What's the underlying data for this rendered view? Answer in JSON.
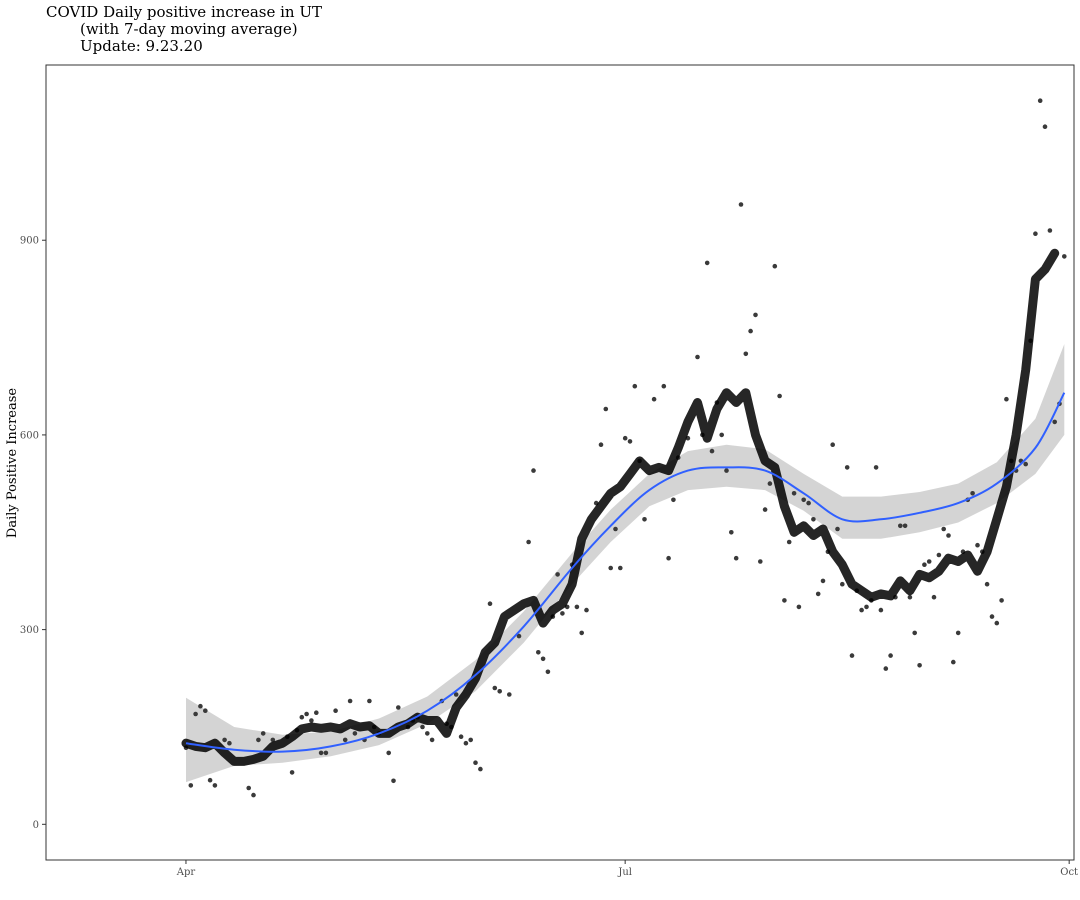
{
  "chart_data": {
    "type": "scatter",
    "title_lines": [
      "COVID Daily positive increase in UT",
      "(with 7-day moving average)",
      "Update:  9.23.20"
    ],
    "xlabel": "",
    "ylabel": "Daily Positive Increase",
    "x_ticks": [
      "Apr",
      "Jul",
      "Oct"
    ],
    "y_ticks": [
      0,
      300,
      600,
      900
    ],
    "ylim": [
      -55,
      1170
    ],
    "xlim_days": [
      -29,
      184
    ],
    "grid": false,
    "colors": {
      "points": "#3a3a3a",
      "moving_average": "#000000",
      "smooth": "#3060ff",
      "band": "#cfcfcf"
    },
    "daily_points": [
      [
        0,
        118
      ],
      [
        1,
        60
      ],
      [
        2,
        170
      ],
      [
        3,
        182
      ],
      [
        4,
        175
      ],
      [
        5,
        68
      ],
      [
        6,
        60
      ],
      [
        8,
        130
      ],
      [
        9,
        125
      ],
      [
        13,
        56
      ],
      [
        14,
        45
      ],
      [
        15,
        130
      ],
      [
        16,
        140
      ],
      [
        18,
        130
      ],
      [
        21,
        135
      ],
      [
        22,
        80
      ],
      [
        23,
        145
      ],
      [
        24,
        165
      ],
      [
        25,
        170
      ],
      [
        26,
        160
      ],
      [
        27,
        172
      ],
      [
        28,
        110
      ],
      [
        29,
        110
      ],
      [
        31,
        175
      ],
      [
        33,
        130
      ],
      [
        34,
        190
      ],
      [
        35,
        140
      ],
      [
        37,
        130
      ],
      [
        38,
        190
      ],
      [
        39,
        150
      ],
      [
        40,
        140
      ],
      [
        42,
        110
      ],
      [
        43,
        67
      ],
      [
        44,
        180
      ],
      [
        46,
        150
      ],
      [
        47,
        160
      ],
      [
        48,
        165
      ],
      [
        49,
        150
      ],
      [
        50,
        140
      ],
      [
        51,
        130
      ],
      [
        53,
        190
      ],
      [
        54,
        155
      ],
      [
        55,
        150
      ],
      [
        56,
        200
      ],
      [
        57,
        135
      ],
      [
        58,
        125
      ],
      [
        59,
        130
      ],
      [
        60,
        95
      ],
      [
        61,
        85
      ],
      [
        63,
        340
      ],
      [
        64,
        210
      ],
      [
        65,
        205
      ],
      [
        67,
        200
      ],
      [
        69,
        290
      ],
      [
        71,
        435
      ],
      [
        72,
        545
      ],
      [
        73,
        265
      ],
      [
        74,
        255
      ],
      [
        75,
        235
      ],
      [
        76,
        320
      ],
      [
        77,
        385
      ],
      [
        78,
        325
      ],
      [
        79,
        335
      ],
      [
        80,
        400
      ],
      [
        81,
        335
      ],
      [
        82,
        295
      ],
      [
        83,
        330
      ],
      [
        85,
        495
      ],
      [
        86,
        585
      ],
      [
        87,
        640
      ],
      [
        88,
        395
      ],
      [
        89,
        455
      ],
      [
        90,
        395
      ],
      [
        91,
        595
      ],
      [
        92,
        590
      ],
      [
        93,
        675
      ],
      [
        94,
        560
      ],
      [
        95,
        470
      ],
      [
        97,
        655
      ],
      [
        99,
        675
      ],
      [
        100,
        410
      ],
      [
        101,
        500
      ],
      [
        102,
        565
      ],
      [
        104,
        595
      ],
      [
        106,
        720
      ],
      [
        107,
        600
      ],
      [
        108,
        865
      ],
      [
        109,
        575
      ],
      [
        110,
        650
      ],
      [
        111,
        600
      ],
      [
        112,
        545
      ],
      [
        113,
        450
      ],
      [
        114,
        410
      ],
      [
        115,
        955
      ],
      [
        116,
        725
      ],
      [
        117,
        760
      ],
      [
        118,
        785
      ],
      [
        119,
        405
      ],
      [
        120,
        485
      ],
      [
        121,
        525
      ],
      [
        122,
        860
      ],
      [
        123,
        660
      ],
      [
        124,
        345
      ],
      [
        125,
        435
      ],
      [
        126,
        510
      ],
      [
        127,
        335
      ],
      [
        128,
        500
      ],
      [
        129,
        495
      ],
      [
        130,
        470
      ],
      [
        131,
        355
      ],
      [
        132,
        375
      ],
      [
        133,
        420
      ],
      [
        134,
        585
      ],
      [
        135,
        455
      ],
      [
        136,
        370
      ],
      [
        137,
        550
      ],
      [
        138,
        260
      ],
      [
        139,
        360
      ],
      [
        140,
        330
      ],
      [
        141,
        335
      ],
      [
        142,
        345
      ],
      [
        143,
        550
      ],
      [
        144,
        330
      ],
      [
        145,
        240
      ],
      [
        146,
        260
      ],
      [
        147,
        350
      ],
      [
        148,
        460
      ],
      [
        149,
        460
      ],
      [
        150,
        350
      ],
      [
        151,
        295
      ],
      [
        152,
        245
      ],
      [
        153,
        400
      ],
      [
        154,
        405
      ],
      [
        155,
        350
      ],
      [
        156,
        415
      ],
      [
        157,
        455
      ],
      [
        158,
        445
      ],
      [
        159,
        250
      ],
      [
        160,
        295
      ],
      [
        161,
        420
      ],
      [
        162,
        500
      ],
      [
        163,
        510
      ],
      [
        164,
        430
      ],
      [
        165,
        420
      ],
      [
        166,
        370
      ],
      [
        167,
        320
      ],
      [
        168,
        310
      ],
      [
        169,
        345
      ],
      [
        170,
        655
      ],
      [
        171,
        560
      ],
      [
        172,
        545
      ],
      [
        173,
        560
      ],
      [
        174,
        555
      ],
      [
        175,
        745
      ],
      [
        176,
        910
      ],
      [
        177,
        1115
      ],
      [
        178,
        1075
      ],
      [
        179,
        915
      ],
      [
        180,
        620
      ],
      [
        181,
        648
      ],
      [
        182,
        875
      ]
    ],
    "moving_average": [
      [
        0,
        125
      ],
      [
        2,
        120
      ],
      [
        4,
        118
      ],
      [
        6,
        125
      ],
      [
        8,
        110
      ],
      [
        10,
        97
      ],
      [
        12,
        97
      ],
      [
        14,
        100
      ],
      [
        16,
        105
      ],
      [
        18,
        120
      ],
      [
        20,
        125
      ],
      [
        22,
        135
      ],
      [
        24,
        147
      ],
      [
        26,
        150
      ],
      [
        28,
        148
      ],
      [
        30,
        150
      ],
      [
        32,
        147
      ],
      [
        34,
        155
      ],
      [
        36,
        150
      ],
      [
        38,
        152
      ],
      [
        40,
        140
      ],
      [
        42,
        140
      ],
      [
        44,
        150
      ],
      [
        46,
        155
      ],
      [
        48,
        165
      ],
      [
        50,
        160
      ],
      [
        52,
        160
      ],
      [
        54,
        140
      ],
      [
        56,
        180
      ],
      [
        58,
        200
      ],
      [
        60,
        225
      ],
      [
        62,
        265
      ],
      [
        64,
        280
      ],
      [
        66,
        320
      ],
      [
        68,
        330
      ],
      [
        70,
        340
      ],
      [
        72,
        345
      ],
      [
        74,
        310
      ],
      [
        76,
        330
      ],
      [
        78,
        340
      ],
      [
        80,
        370
      ],
      [
        82,
        440
      ],
      [
        84,
        470
      ],
      [
        86,
        490
      ],
      [
        88,
        510
      ],
      [
        90,
        520
      ],
      [
        92,
        540
      ],
      [
        94,
        560
      ],
      [
        96,
        545
      ],
      [
        98,
        550
      ],
      [
        100,
        545
      ],
      [
        102,
        580
      ],
      [
        104,
        620
      ],
      [
        106,
        650
      ],
      [
        108,
        595
      ],
      [
        110,
        640
      ],
      [
        112,
        665
      ],
      [
        114,
        650
      ],
      [
        116,
        665
      ],
      [
        118,
        600
      ],
      [
        120,
        560
      ],
      [
        122,
        550
      ],
      [
        124,
        490
      ],
      [
        126,
        450
      ],
      [
        128,
        460
      ],
      [
        130,
        445
      ],
      [
        132,
        455
      ],
      [
        134,
        420
      ],
      [
        136,
        400
      ],
      [
        138,
        370
      ],
      [
        140,
        360
      ],
      [
        142,
        350
      ],
      [
        144,
        355
      ],
      [
        146,
        352
      ],
      [
        148,
        375
      ],
      [
        150,
        360
      ],
      [
        152,
        385
      ],
      [
        154,
        380
      ],
      [
        156,
        390
      ],
      [
        158,
        410
      ],
      [
        160,
        405
      ],
      [
        162,
        415
      ],
      [
        164,
        390
      ],
      [
        166,
        420
      ],
      [
        168,
        470
      ],
      [
        170,
        520
      ],
      [
        172,
        600
      ],
      [
        174,
        700
      ],
      [
        176,
        840
      ],
      [
        178,
        855
      ],
      [
        180,
        880
      ]
    ],
    "smooth_curve": [
      [
        0,
        125
      ],
      [
        10,
        115
      ],
      [
        20,
        112
      ],
      [
        30,
        120
      ],
      [
        40,
        140
      ],
      [
        50,
        175
      ],
      [
        60,
        230
      ],
      [
        70,
        305
      ],
      [
        80,
        395
      ],
      [
        88,
        460
      ],
      [
        96,
        515
      ],
      [
        104,
        545
      ],
      [
        112,
        550
      ],
      [
        120,
        545
      ],
      [
        128,
        510
      ],
      [
        136,
        470
      ],
      [
        144,
        470
      ],
      [
        152,
        480
      ],
      [
        160,
        495
      ],
      [
        168,
        525
      ],
      [
        176,
        580
      ],
      [
        182,
        665
      ]
    ],
    "confidence_band": {
      "x": [
        0,
        10,
        20,
        30,
        40,
        50,
        60,
        70,
        80,
        88,
        96,
        104,
        112,
        120,
        128,
        136,
        144,
        152,
        160,
        168,
        176,
        182
      ],
      "upper": [
        195,
        150,
        138,
        143,
        163,
        197,
        253,
        328,
        418,
        485,
        540,
        575,
        585,
        578,
        540,
        505,
        505,
        512,
        525,
        558,
        625,
        740
      ],
      "lower": [
        65,
        90,
        95,
        105,
        122,
        155,
        205,
        280,
        370,
        435,
        490,
        515,
        520,
        515,
        483,
        440,
        440,
        450,
        465,
        495,
        540,
        600
      ]
    }
  }
}
